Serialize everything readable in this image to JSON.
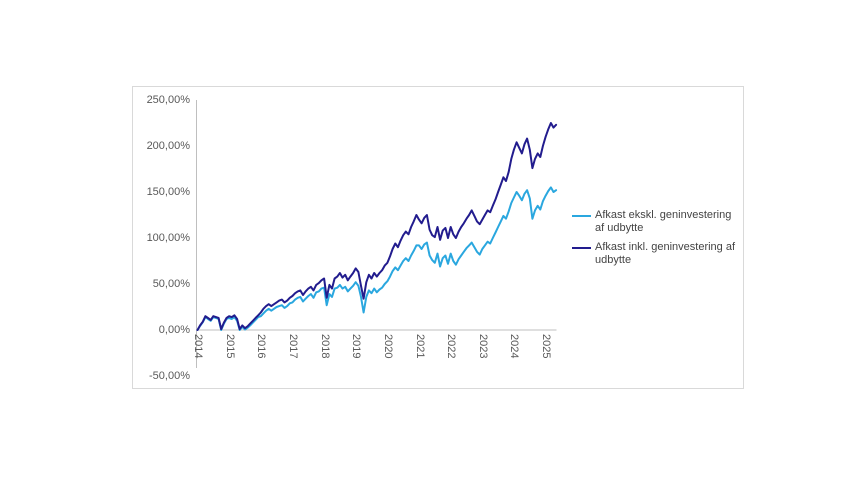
{
  "chart": {
    "frame_border_color": "#d9d9d9",
    "axis_line_color": "#bfbfbf",
    "tick_label_color": "#595959",
    "y_axis": {
      "tick_labels": [
        "250,00%",
        "200,00%",
        "150,00%",
        "100,00%",
        "50,00%",
        "0,00%",
        "-50,00%"
      ],
      "tick_values": [
        250,
        200,
        150,
        100,
        50,
        0,
        -50
      ]
    },
    "x_axis": {
      "tick_labels": [
        "2014",
        "2015",
        "2016",
        "2017",
        "2018",
        "2019",
        "2020",
        "2021",
        "2022",
        "2023",
        "2024",
        "2025"
      ]
    },
    "legend": {
      "items": [
        {
          "label": "Afkast ekskl. geninvestering af udbytte",
          "color": "#2aa7df"
        },
        {
          "label": "Afkast inkl. geninvestering af udbytte",
          "color": "#221c8e"
        }
      ]
    }
  },
  "chart_data": {
    "type": "line",
    "title": "",
    "xlabel": "",
    "ylabel": "",
    "x_unit": "month",
    "x_start_year": 2014,
    "points_per_year": 12,
    "x_tick_years": [
      2014,
      2015,
      2016,
      2017,
      2018,
      2019,
      2020,
      2021,
      2022,
      2023,
      2024,
      2025
    ],
    "ylim": [
      -50,
      250
    ],
    "y_tick_step": 50,
    "y_tick_format": "percent-da-2dec",
    "grid": false,
    "legend_position": "right",
    "series": [
      {
        "name": "Afkast ekskl. geninvestering af udbytte",
        "color": "#2aa7df",
        "values": [
          0,
          4.5,
          8.5,
          14,
          12,
          10,
          14,
          13,
          12,
          0,
          7,
          12,
          13,
          12,
          14,
          10,
          0,
          3.5,
          0.5,
          2.5,
          5,
          8,
          11,
          14,
          15,
          18,
          21,
          23,
          21,
          23,
          25,
          26,
          27,
          24,
          26,
          29,
          30,
          33,
          35,
          36,
          31,
          34,
          37,
          39,
          35,
          41,
          42,
          45,
          46,
          27,
          39,
          36,
          45,
          46,
          49,
          45,
          47,
          42,
          45,
          48,
          52,
          48,
          36,
          19,
          36,
          43,
          40,
          45,
          41,
          44,
          46,
          50,
          53,
          58,
          64,
          68,
          65,
          70,
          75,
          78,
          75,
          81,
          86,
          92,
          92,
          88,
          93,
          95,
          81,
          76,
          73,
          83,
          69,
          78,
          81,
          72,
          83,
          75,
          71,
          77,
          81,
          85,
          89,
          92,
          95,
          90,
          85,
          82,
          88,
          92,
          96,
          94,
          100,
          106,
          112,
          118,
          124,
          121,
          129,
          138,
          144,
          150,
          146,
          141,
          148,
          152,
          143,
          121,
          130,
          135,
          131,
          140,
          146,
          151,
          155,
          150,
          152
        ]
      },
      {
        "name": "Afkast inkl. geninvestering af udbytte",
        "color": "#221c8e",
        "values": [
          0,
          5,
          9,
          15,
          13,
          11,
          15,
          14,
          13,
          1,
          8,
          13,
          15,
          14,
          16,
          12,
          1,
          5,
          2,
          4,
          7,
          10,
          13,
          16,
          19,
          23,
          26,
          28,
          26,
          28,
          30,
          32,
          33,
          30,
          32,
          35,
          37,
          40,
          42,
          43,
          38,
          42,
          45,
          47,
          43,
          49,
          51,
          54,
          56,
          35,
          49,
          45,
          56,
          58,
          62,
          57,
          60,
          54,
          58,
          62,
          67,
          63,
          48,
          34,
          52,
          60,
          56,
          62,
          58,
          62,
          65,
          70,
          73,
          80,
          88,
          94,
          90,
          97,
          103,
          107,
          104,
          112,
          118,
          125,
          120,
          116,
          122,
          125,
          109,
          103,
          101,
          112,
          98,
          108,
          111,
          100,
          112,
          104,
          100,
          107,
          112,
          116,
          121,
          125,
          130,
          124,
          118,
          115,
          120,
          125,
          130,
          128,
          135,
          142,
          150,
          158,
          166,
          162,
          172,
          186,
          196,
          204,
          198,
          192,
          202,
          208,
          196,
          176,
          186,
          192,
          188,
          200,
          210,
          218,
          225,
          220,
          223
        ]
      }
    ]
  }
}
